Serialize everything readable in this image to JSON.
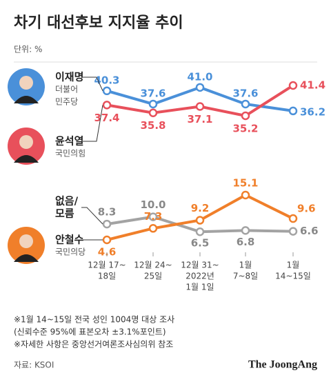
{
  "title": "차기 대선후보 지지율 추이",
  "unit": "단위: %",
  "chart_data": [
    {
      "type": "line",
      "series": [
        {
          "name": [
            "이재명"
          ],
          "party": [
            "더불어",
            "민주당"
          ],
          "color": "#4a90d9",
          "values": [
            40.3,
            37.6,
            41.0,
            37.6,
            36.2
          ],
          "value_labels": [
            "40.3",
            "37.6",
            "41.0",
            "37.6",
            "36.2"
          ]
        },
        {
          "name": [
            "윤석열"
          ],
          "party": [
            "국민의힘"
          ],
          "color": "#e8505b",
          "values": [
            37.4,
            35.8,
            37.1,
            35.2,
            41.4
          ]
        }
      ]
    },
    {
      "type": "line",
      "categories": [
        [
          "12월 17~",
          "18일"
        ],
        [
          "12월 24~",
          "25일"
        ],
        [
          "12월 31~",
          "2022년",
          "1월 1일"
        ],
        [
          "1월",
          "7~8일"
        ],
        [
          "1월",
          "14~15일"
        ]
      ],
      "series": [
        {
          "name": [
            "없음/",
            "모름"
          ],
          "color": "#a3a3a3",
          "values": [
            8.3,
            10.0,
            6.5,
            6.8,
            6.6
          ],
          "value_labels": [
            "8.3",
            "10.0",
            "6.5",
            "6.8",
            "6.6"
          ]
        },
        {
          "name": [
            "안철수"
          ],
          "party": [
            "국민의당"
          ],
          "color": "#f07f2a",
          "values": [
            4.6,
            7.3,
            9.2,
            15.1,
            9.6
          ]
        }
      ]
    }
  ],
  "notes": [
    "※1월 14~15일 전국 성인 1004명 대상 조사",
    "(신뢰수준 95%에 표본오차 ±3.1%포인트)",
    "※자세한 사항은 중앙선거여론조사심의위 참조"
  ],
  "source": "자료: KSOI",
  "brand": "The JoongAng"
}
